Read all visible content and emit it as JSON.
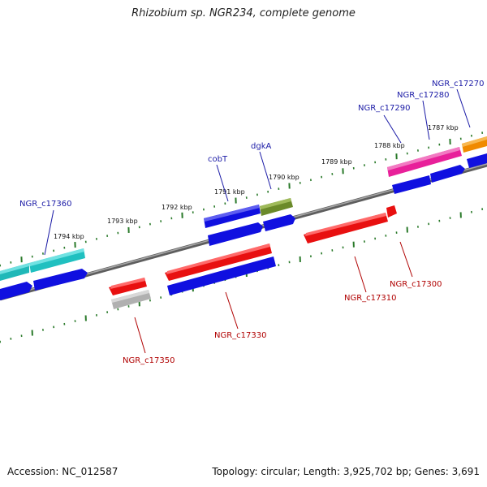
{
  "title": "Rhizobium sp. NGR234, complete genome",
  "footer": {
    "accession": "Accession: NC_012587",
    "topology": "Topology: circular; Length: 3,925,702 bp; Genes: 3,691"
  },
  "colors": {
    "backbone": "#808080",
    "ticks": "#2a7a2a",
    "forward_label": "#1a1aa6",
    "reverse_label": "#b00000"
  },
  "scale_labels": [
    {
      "text": "1794 kbp",
      "kbp": 1794
    },
    {
      "text": "1793 kbp",
      "kbp": 1793
    },
    {
      "text": "1792 kbp",
      "kbp": 1792
    },
    {
      "text": "1791 kbp",
      "kbp": 1791
    },
    {
      "text": "1790 kbp",
      "kbp": 1790
    },
    {
      "text": "1789 kbp",
      "kbp": 1789
    },
    {
      "text": "1788 kbp",
      "kbp": 1788
    },
    {
      "text": "1787 kbp",
      "kbp": 1787
    }
  ],
  "forward_genes": [
    {
      "label": "NGR_c17360",
      "color": "#20c8c8"
    },
    {
      "label": "cobT",
      "color": "#1010e0"
    },
    {
      "label": "dgkA",
      "color": "#6b8a2a"
    },
    {
      "label": "NGR_c17290",
      "color": "#e8209a"
    },
    {
      "label": "NGR_c17280",
      "color": "#e8209a"
    },
    {
      "label": "NGR_c17270",
      "color": "#f08a00"
    }
  ],
  "reverse_genes": [
    {
      "label": "NGR_c17350",
      "color": "#e81010"
    },
    {
      "label": "NGR_c17330",
      "color": "#e81010"
    },
    {
      "label": "NGR_c17310",
      "color": "#e81010"
    },
    {
      "label": "NGR_c17300",
      "color": "#e81010"
    }
  ]
}
